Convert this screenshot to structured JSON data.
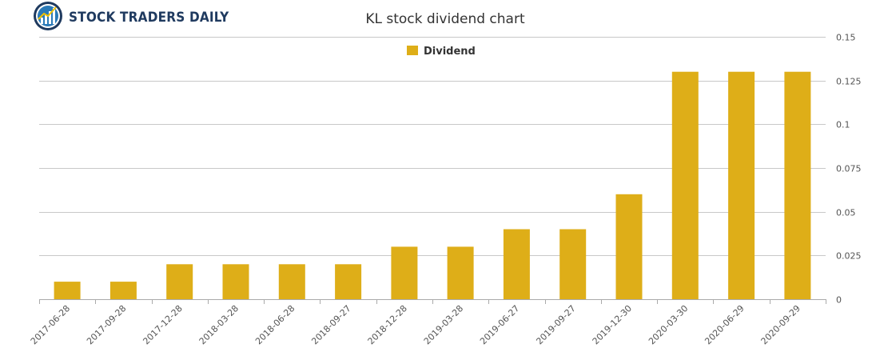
{
  "brand": {
    "name": "STOCK TRADERS DAILY",
    "logo_icon": "chart-globe-icon"
  },
  "colors": {
    "bar": "#DEAE18",
    "grid": "#C8C8C8",
    "axis": "#AAAAAA",
    "brand": "#1F3A5F"
  },
  "chart_data": {
    "type": "bar",
    "title": "KL stock dividend chart",
    "xlabel": "",
    "ylabel": "",
    "legend": {
      "label": "Dividend",
      "position": "top-center"
    },
    "series": [
      {
        "name": "Dividend",
        "values": [
          0.01,
          0.01,
          0.02,
          0.02,
          0.02,
          0.02,
          0.03,
          0.03,
          0.04,
          0.04,
          0.06,
          0.13,
          0.13,
          0.13
        ]
      }
    ],
    "categories": [
      "2017-06-28",
      "2017-09-28",
      "2017-12-28",
      "2018-03-28",
      "2018-06-28",
      "2018-09-27",
      "2018-12-28",
      "2019-03-28",
      "2019-06-27",
      "2019-09-27",
      "2019-12-30",
      "2020-03-30",
      "2020-06-29",
      "2020-09-29"
    ],
    "ylim": [
      0,
      0.15
    ],
    "yticks": [
      0,
      0.025,
      0.05,
      0.075,
      0.1,
      0.125,
      0.15
    ],
    "ytick_labels": [
      "0",
      "0.025",
      "0.05",
      "0.075",
      "0.1",
      "0.125",
      "0.15"
    ],
    "y_axis_side": "right",
    "grid": true
  }
}
